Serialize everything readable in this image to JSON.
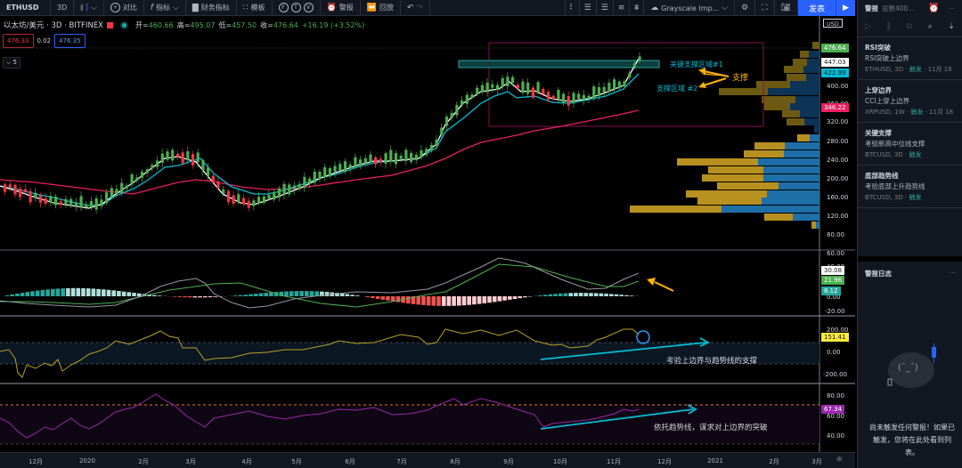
{
  "toolbar": {
    "symbol": "ETHUSD",
    "interval": "3D",
    "compare_label": "对比",
    "indicators_label": "指标",
    "financials_label": "财务指标",
    "templates_label": "模板",
    "f_label": "F",
    "t_label": "T",
    "v_label": "V",
    "alert_label": "警报",
    "replay_label": "回放",
    "layout_name": "Grayscale Imp...",
    "publish_label": "发表"
  },
  "legend": {
    "symbol_name": "以太坊/美元 · 3D · BITFINEX",
    "open_label": "开=",
    "open": "460.66",
    "high_label": "高=",
    "high": "495.07",
    "low_label": "低=",
    "low": "457.50",
    "close_label": "收=",
    "close": "476.64",
    "change": "+16.19 (+3.52%)",
    "sell_price": "476.33",
    "spread": "0.02",
    "buy_price": "476.35",
    "collapse_count": "5"
  },
  "price_axis": {
    "currency": "USD",
    "ticks": [
      "400.00",
      "360.00",
      "320.00",
      "280.00",
      "240.00",
      "200.00",
      "160.00",
      "120.00",
      "80.00"
    ],
    "tags": [
      {
        "value": "476.64",
        "color": "#4caf50"
      },
      {
        "value": "447.03",
        "color": "#ffffff"
      },
      {
        "value": "422.99",
        "color": "#00bcd4"
      },
      {
        "value": "346.22",
        "color": "#e91e63"
      }
    ]
  },
  "macd_axis": {
    "ticks": [
      "60.00",
      "40.00",
      "0.00",
      "-20.00"
    ],
    "tags": [
      {
        "value": "30.08",
        "color": "#ffffff"
      },
      {
        "value": "21.96",
        "color": "#4caf50"
      },
      {
        "value": "8.12",
        "color": "#26a69a"
      }
    ]
  },
  "cci_axis": {
    "ticks": [
      "200.00",
      "0.00",
      "-200.00"
    ],
    "tags": [
      {
        "value": "151.41",
        "color": "#ffeb3b"
      }
    ]
  },
  "rsi_axis": {
    "ticks": [
      "80.00",
      "60.00",
      "40.00"
    ],
    "tags": [
      {
        "value": "67.34",
        "color": "#9c27b0"
      }
    ]
  },
  "annotations": {
    "zone1": "关键支撑区域#1",
    "zone2": "支撑区域 #2",
    "support": "支撑",
    "cci_note": "考验上边界与趋势线的支撑",
    "rsi_note": "依托趋势线，谋求对上边界的突破"
  },
  "time_axis": [
    "12月",
    "2020",
    "2月",
    "3月",
    "4月",
    "5月",
    "6月",
    "7月",
    "8月",
    "9月",
    "10月",
    "11月",
    "12月",
    "2021",
    "2月",
    "3月"
  ],
  "panel": {
    "title": "警报",
    "subtitle": "总数400...",
    "alerts": [
      {
        "title": "RSI突破",
        "desc": "RSI突破上边界",
        "symbol": "ETHUSD, 3D",
        "status": "触发",
        "date": "11月 18"
      },
      {
        "title": "上穿边界",
        "desc": "CCI上穿上边界",
        "symbol": "XRPUSD, 1W",
        "status": "触发",
        "date": "11月 18"
      },
      {
        "title": "关键支撑",
        "desc": "考验新高中位线支撑",
        "symbol": "BTCUSD, 3D",
        "status": "触发",
        "date": ""
      },
      {
        "title": "底部趋势线",
        "desc": "考验底部上升趋势线",
        "symbol": "BTCUSD, 3D",
        "status": "触发",
        "date": ""
      }
    ],
    "log_title": "警报日志",
    "log_empty": "尚未触发任何警报！如果已触发，您将在此处看到列表。"
  },
  "colors": {
    "up": "#4caf50",
    "down": "#f23645",
    "ema_fast": "#ffffff",
    "ema_mid": "#00bcd4",
    "ema_slow": "#e91e63",
    "accent": "#2962ff",
    "annotation_cyan": "#00bcd4",
    "annotation_orange": "#ffb300"
  }
}
